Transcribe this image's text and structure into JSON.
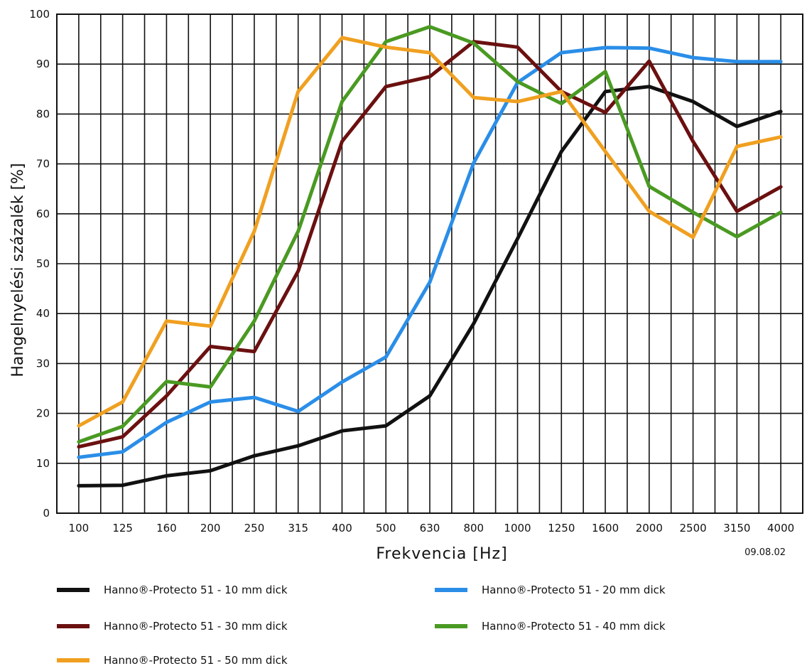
{
  "chart_data": {
    "type": "line",
    "title": "",
    "xlabel": "Frekvencia [Hz]",
    "ylabel": "Hangelnyelési százalék [%]",
    "date_stamp": "09.08.02",
    "ylim": [
      0,
      100
    ],
    "yticks": [
      "0",
      "10",
      "20",
      "30",
      "40",
      "50",
      "60",
      "70",
      "80",
      "90",
      "100"
    ],
    "categories": [
      "100",
      "125",
      "160",
      "200",
      "250",
      "315",
      "400",
      "500",
      "630",
      "800",
      "1000",
      "1250",
      "1600",
      "2000",
      "2500",
      "3150",
      "4000"
    ],
    "grid": true,
    "legend_position": "bottom",
    "series": [
      {
        "name": "Hanno®-Protecto 51 - 10 mm dick",
        "color": "#111111",
        "values": [
          5.5,
          5.6,
          7.5,
          8.5,
          11.5,
          13.5,
          16.5,
          17.5,
          23.5,
          38,
          55,
          72.5,
          84.5,
          85.5,
          82.5,
          77.5,
          80.5
        ]
      },
      {
        "name": "Hanno®-Protecto 51 - 20 mm dick",
        "color": "#2a8ee8",
        "values": [
          11.2,
          12.3,
          18.2,
          22.3,
          23.2,
          20.4,
          26.3,
          31.3,
          46.3,
          70.2,
          86.3,
          92.3,
          93.3,
          93.2,
          91.3,
          90.5,
          90.5
        ]
      },
      {
        "name": "Hanno®-Protecto 51 - 30 mm dick",
        "color": "#6b1010",
        "values": [
          13.3,
          15.3,
          23.5,
          33.4,
          32.4,
          48.5,
          74.5,
          85.5,
          87.5,
          94.5,
          93.4,
          84.5,
          80.3,
          90.6,
          74.5,
          60.5,
          65.4
        ]
      },
      {
        "name": "Hanno®-Protecto 51 - 40 mm dick",
        "color": "#4a9a22",
        "values": [
          14.3,
          17.4,
          26.4,
          25.3,
          38.5,
          56.5,
          82.5,
          94.5,
          97.5,
          94.2,
          86.5,
          82.1,
          88.5,
          65.5,
          60.3,
          55.4,
          60.3
        ]
      },
      {
        "name": "Hanno®-Protecto 51 - 50 mm dick",
        "color": "#f0a020",
        "values": [
          17.5,
          22.3,
          38.5,
          37.5,
          56.5,
          84.5,
          95.3,
          93.4,
          92.3,
          83.3,
          82.5,
          84.5,
          72.5,
          60.5,
          55.3,
          73.5,
          75.4
        ]
      }
    ]
  }
}
